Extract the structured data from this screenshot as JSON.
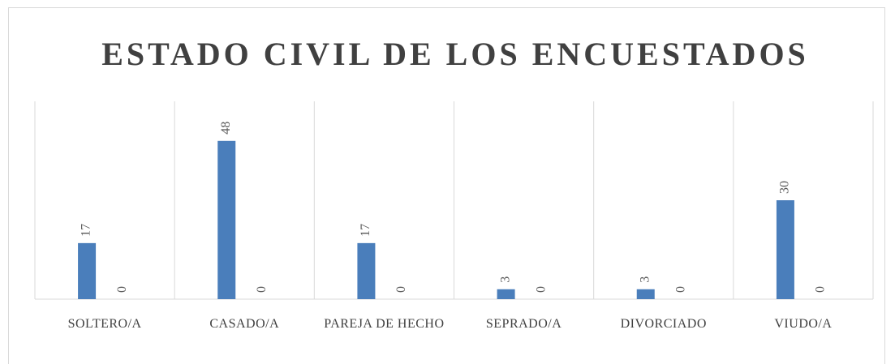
{
  "chart_data": {
    "type": "bar",
    "title": "ESTADO CIVIL DE LOS ENCUESTADOS",
    "categories": [
      "SOLTERO/A",
      "CASADO/A",
      "PAREJA DE HECHO",
      "SEPRADO/A",
      "DIVORCIADO",
      "VIUDO/A"
    ],
    "series": [
      {
        "color": "#4a7ebb",
        "values": [
          17,
          48,
          17,
          3,
          3,
          30
        ]
      },
      {
        "values": [
          0,
          0,
          0,
          0,
          0,
          0
        ]
      }
    ],
    "ylim": [
      0,
      60
    ]
  }
}
